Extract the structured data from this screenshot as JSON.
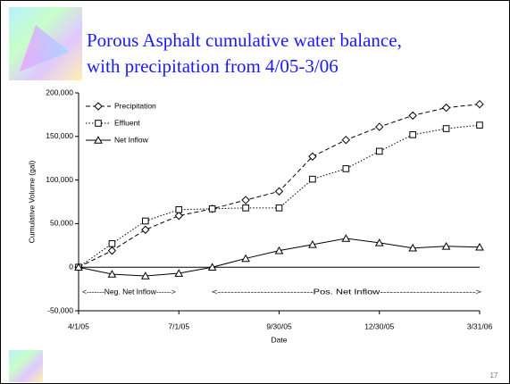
{
  "slide": {
    "title_lines": [
      "Porous Asphalt cumulative water balance,",
      "with precipitation from 4/05-3/06"
    ],
    "page_number": "17"
  },
  "chart_data": {
    "type": "line",
    "categories": [
      "4/1/05",
      null,
      null,
      "7/1/05",
      null,
      null,
      "9/30/05",
      null,
      null,
      "12/30/05",
      null,
      null,
      "3/31/06"
    ],
    "series": [
      {
        "name": "Precipitation",
        "color": "#000000",
        "dash": "5,3",
        "marker": "diamond",
        "values": [
          0,
          19000,
          43000,
          59000,
          67000,
          77000,
          87000,
          127000,
          146000,
          161000,
          174000,
          183000,
          187000
        ]
      },
      {
        "name": "Effluent",
        "color": "#000000",
        "dash": "1.5,2",
        "marker": "square",
        "values": [
          0,
          27000,
          53000,
          66000,
          67000,
          68000,
          68000,
          101000,
          113000,
          133000,
          152000,
          159000,
          163000
        ]
      },
      {
        "name": "Net Inflow",
        "color": "#000000",
        "dash": "none",
        "marker": "triangle",
        "values": [
          0,
          -8000,
          -10000,
          -7000,
          0,
          10000,
          19000,
          26000,
          33000,
          28000,
          22000,
          24000,
          23000
        ]
      }
    ],
    "ylim": [
      -50000,
      200000
    ],
    "yticks": [
      {
        "value": -50000,
        "label": "-50,000"
      },
      0,
      {
        "value": 50000,
        "label": "50,000"
      },
      {
        "value": 100000,
        "label": "100,000"
      },
      {
        "value": 150000,
        "label": "150,000"
      },
      {
        "value": 200000,
        "label": "200,000"
      }
    ],
    "ylabel": "Cumulative Volume (gal)",
    "xlabel": "Date",
    "annotations": [
      "<-------Neg. Net Inflow------>",
      "<-----------------------------Pos. Net Inflow----------------------------->"
    ],
    "grid": false
  }
}
